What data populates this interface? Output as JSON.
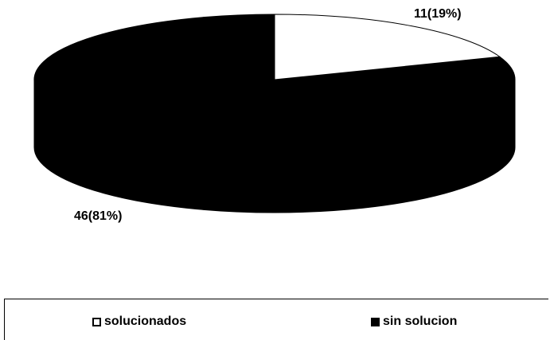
{
  "chart_data": {
    "type": "pie",
    "style": "3d",
    "title": "",
    "categories": [
      "solucionados",
      "sin solucion"
    ],
    "values": [
      11,
      46
    ],
    "percentages": [
      19,
      81
    ],
    "data_labels": [
      "11(19%)",
      "46(81%)"
    ],
    "colors": [
      "#ffffff",
      "#000000"
    ],
    "legend_placement": "bottom"
  },
  "legend": {
    "items": [
      {
        "label": "solucionados",
        "color": "#ffffff"
      },
      {
        "label": "sin solucion",
        "color": "#000000"
      }
    ]
  }
}
